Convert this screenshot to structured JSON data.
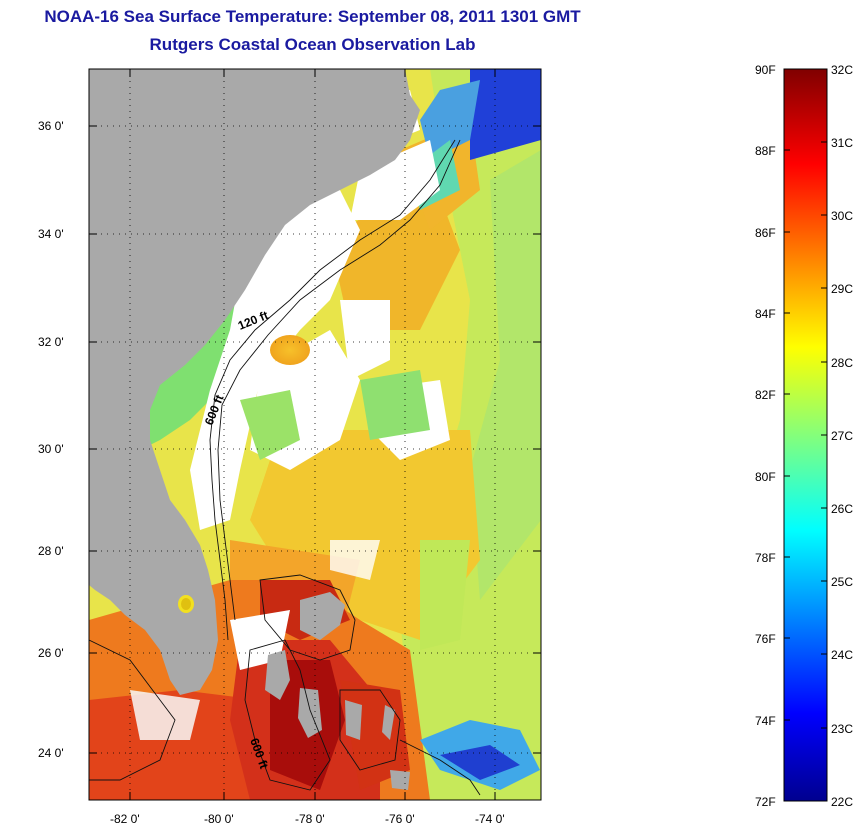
{
  "header": {
    "title": "NOAA-16 Sea Surface Temperature:  September 08, 2011 1301 GMT",
    "subtitle": "Rutgers Coastal Ocean Observation Lab"
  },
  "map": {
    "lat_labels": [
      "36 0'",
      "34 0'",
      "32 0'",
      "30 0'",
      "28 0'",
      "26 0'",
      "24 0'"
    ],
    "lon_labels": [
      "-82 0'",
      "-80 0'",
      "-78 0'",
      "-76 0'",
      "-74 0'"
    ],
    "contour_labels": [
      "120 ft",
      "600 ft",
      "600 ft"
    ],
    "colors": {
      "land": "#a9a9a9",
      "cloud": "#ffffff",
      "cold": "#1f3fd0",
      "cool": "#55e0c0",
      "warm_green": "#c8ec50",
      "warm_yellow": "#f4d21e",
      "orange": "#f59c1c",
      "red": "#e3340e",
      "dark_red": "#a80d0b"
    }
  },
  "colorbar": {
    "fahrenheit_labels": [
      "90F",
      "88F",
      "86F",
      "84F",
      "82F",
      "80F",
      "78F",
      "76F",
      "74F",
      "72F"
    ],
    "celsius_labels": [
      "32C",
      "31C",
      "30C",
      "29C",
      "28C",
      "27C",
      "26C",
      "25C",
      "24C",
      "23C",
      "22C"
    ],
    "colormap": "jet",
    "range_c": [
      22,
      32
    ],
    "range_f": [
      72,
      90
    ]
  }
}
